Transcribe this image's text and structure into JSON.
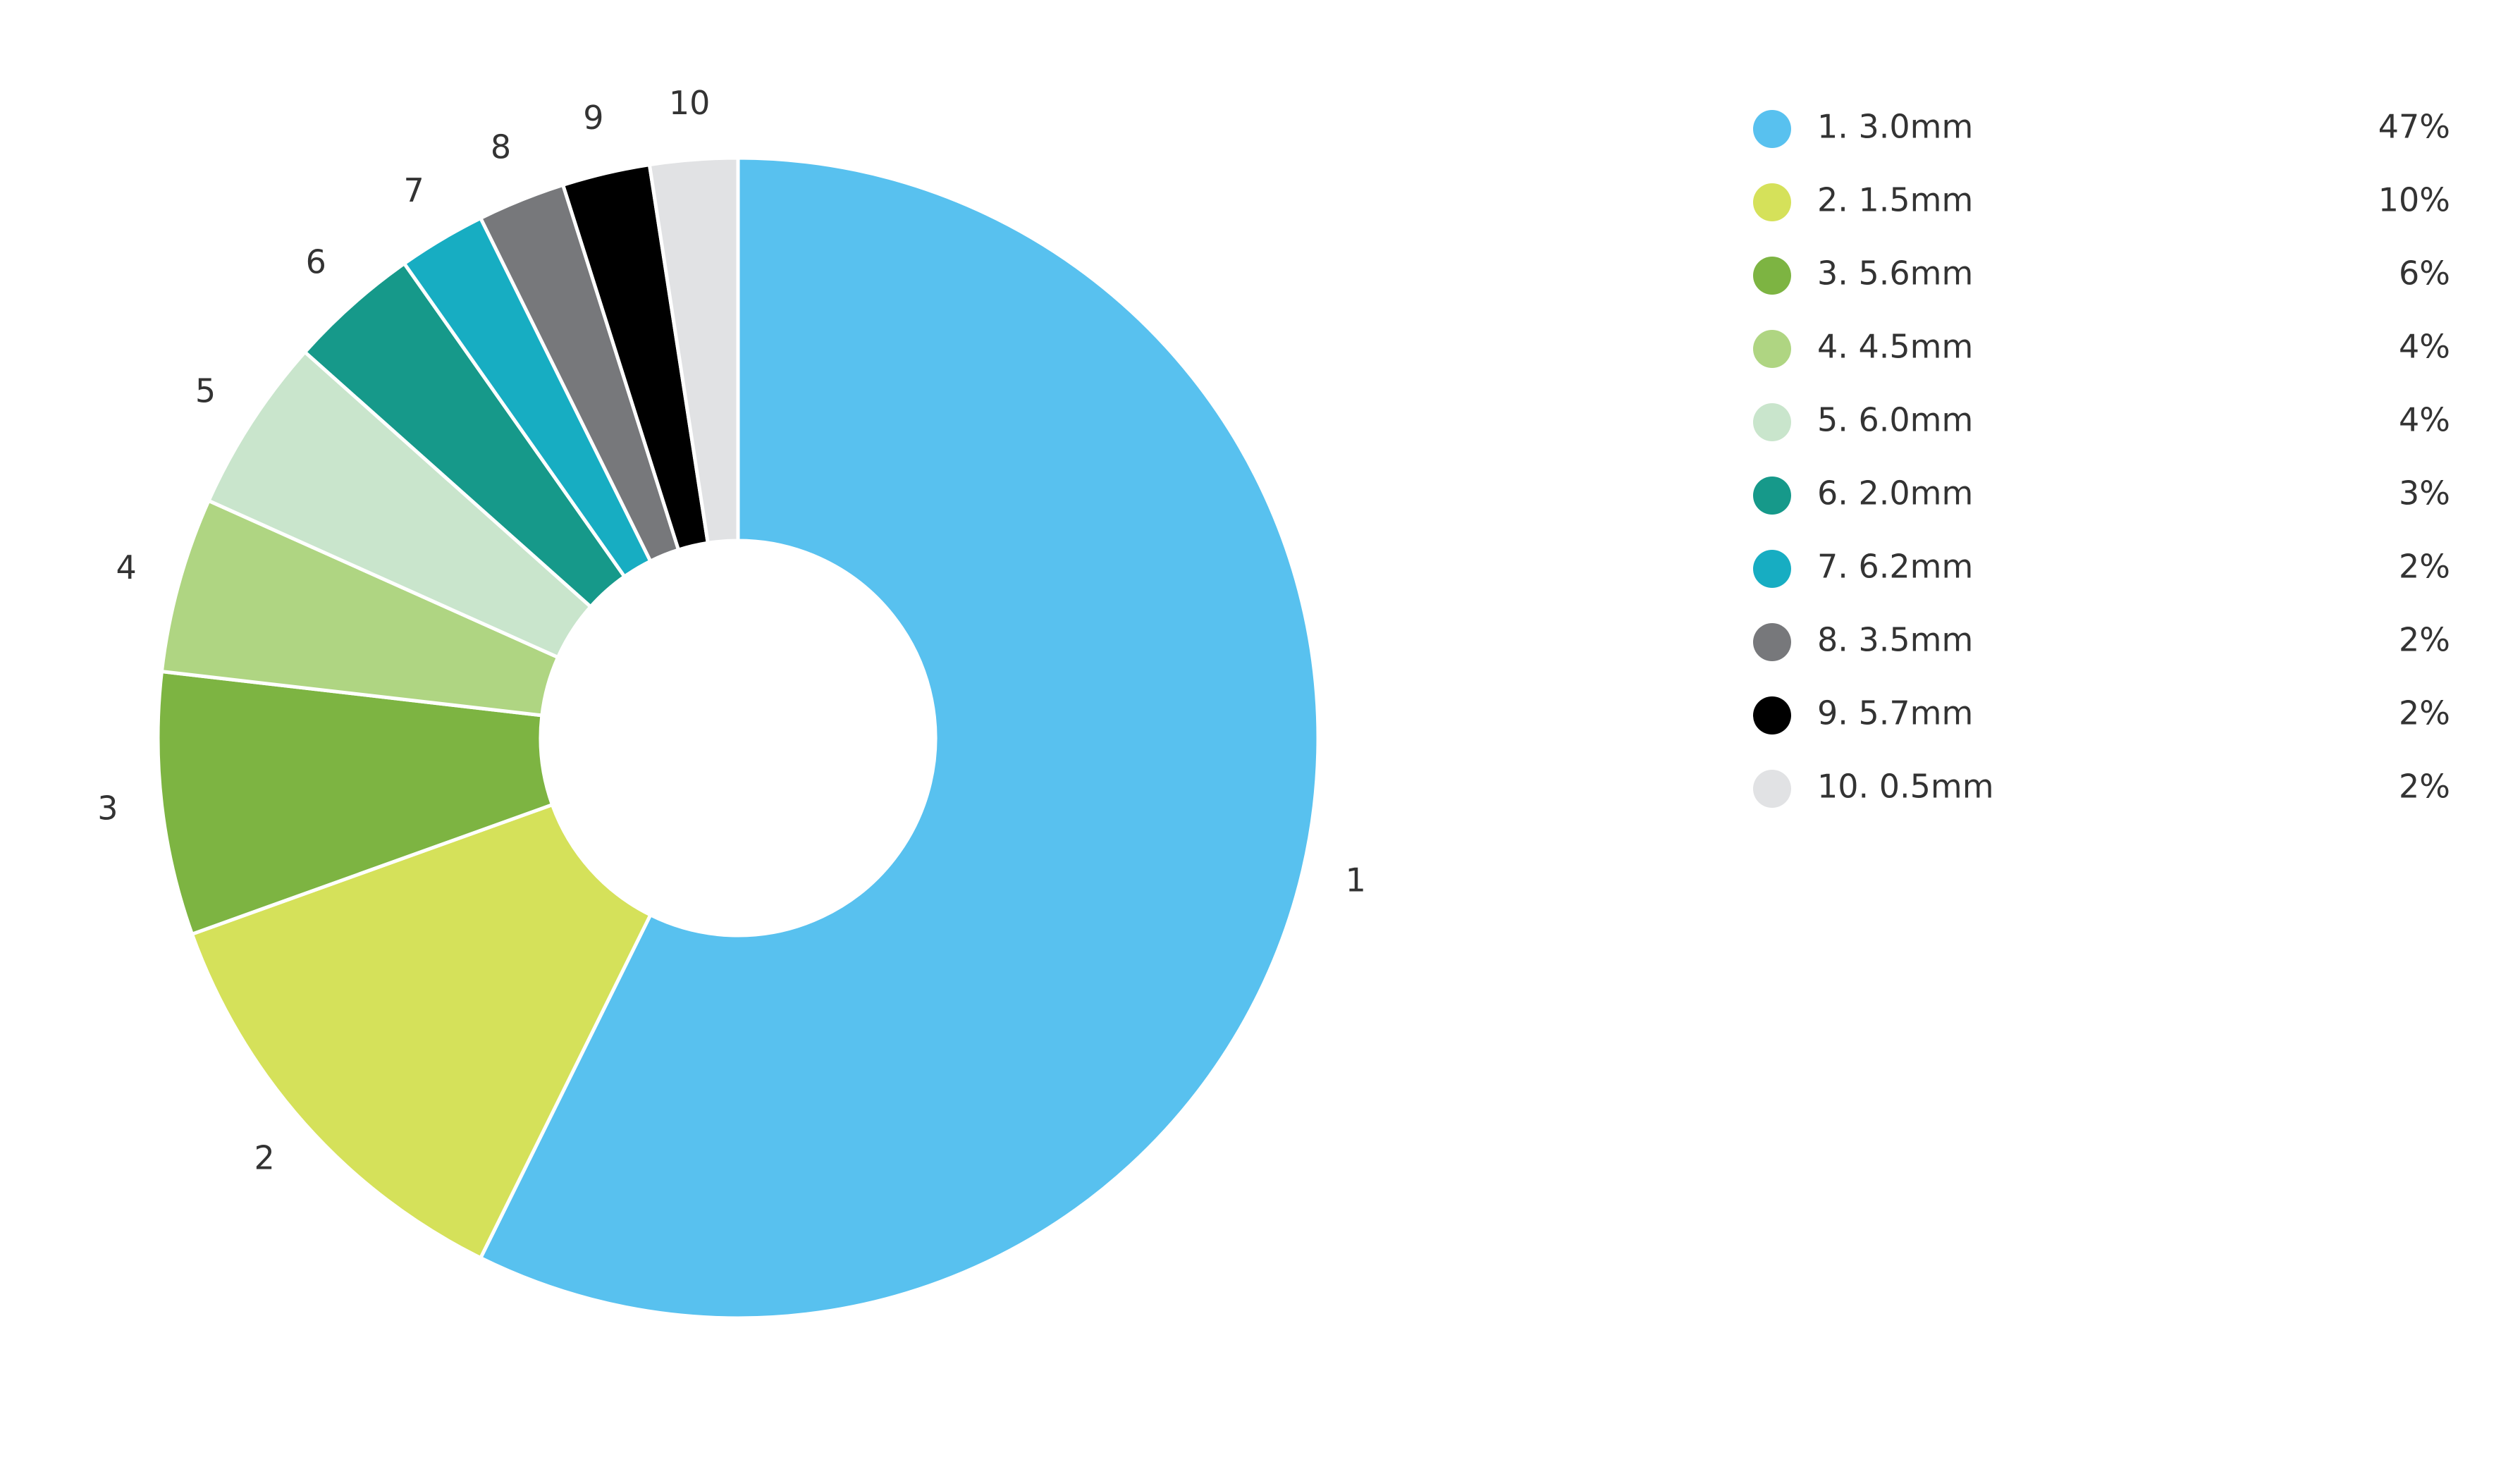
{
  "chart_data": {
    "type": "donut",
    "slice_labels": [
      "1",
      "2",
      "3",
      "4",
      "5",
      "6",
      "7",
      "8",
      "9",
      "10"
    ],
    "categories": [
      "1. 3.0mm",
      "2. 1.5mm",
      "3. 5.6mm",
      "4. 4.5mm",
      "5. 6.0mm",
      "6. 2.0mm",
      "7. 6.2mm",
      "8. 3.5mm",
      "9. 5.7mm",
      "10. 0.5mm"
    ],
    "values": [
      47,
      10,
      6,
      4,
      4,
      3,
      2,
      2,
      2,
      2
    ],
    "value_labels": [
      "47%",
      "10%",
      "6%",
      "4%",
      "4%",
      "3%",
      "2%",
      "2%",
      "2%",
      "2%"
    ],
    "colors": [
      "#58c1ef",
      "#d5e15a",
      "#7db442",
      "#afd582",
      "#c9e5cc",
      "#16998a",
      "#17adc2",
      "#77787b",
      "#000000",
      "#e1e2e4"
    ],
    "legend": "right"
  }
}
